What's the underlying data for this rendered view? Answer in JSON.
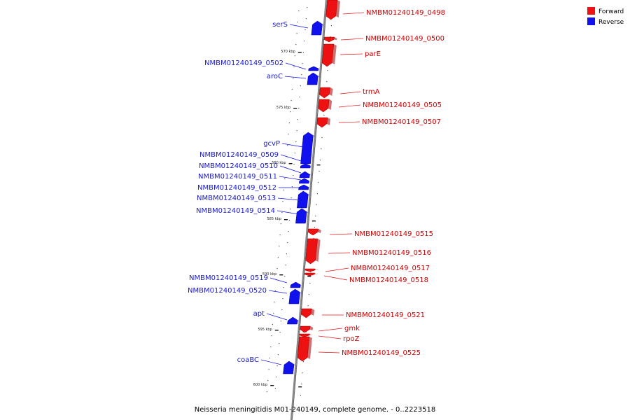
{
  "legend": {
    "forward": {
      "label": "Forward",
      "color": "#ee1111"
    },
    "reverse": {
      "label": "Reverse",
      "color": "#1111ee"
    }
  },
  "caption": "Neisseria meningitidis M01-240149, complete genome. - 0..2223518",
  "ticks": [
    "570 kbp",
    "575 kbp",
    "580 kbp",
    "585 kbp",
    "590 kbp",
    "595 kbp",
    "600 kbp"
  ],
  "features": [
    {
      "name": "NMBM01240149_0498",
      "strand": "forward"
    },
    {
      "name": "serS",
      "strand": "reverse"
    },
    {
      "name": "NMBM01240149_0500",
      "strand": "forward"
    },
    {
      "name": "parE",
      "strand": "forward"
    },
    {
      "name": "NMBM01240149_0502",
      "strand": "reverse"
    },
    {
      "name": "aroC",
      "strand": "reverse"
    },
    {
      "name": "trmA",
      "strand": "forward"
    },
    {
      "name": "NMBM01240149_0505",
      "strand": "forward"
    },
    {
      "name": "NMBM01240149_0507",
      "strand": "forward"
    },
    {
      "name": "gcvP",
      "strand": "reverse"
    },
    {
      "name": "NMBM01240149_0509",
      "strand": "reverse"
    },
    {
      "name": "NMBM01240149_0510",
      "strand": "reverse"
    },
    {
      "name": "NMBM01240149_0511",
      "strand": "reverse"
    },
    {
      "name": "NMBM01240149_0512",
      "strand": "reverse"
    },
    {
      "name": "NMBM01240149_0513",
      "strand": "reverse"
    },
    {
      "name": "NMBM01240149_0514",
      "strand": "reverse"
    },
    {
      "name": "NMBM01240149_0515",
      "strand": "forward"
    },
    {
      "name": "NMBM01240149_0516",
      "strand": "forward"
    },
    {
      "name": "NMBM01240149_0517",
      "strand": "forward"
    },
    {
      "name": "NMBM01240149_0518",
      "strand": "forward"
    },
    {
      "name": "NMBM01240149_0519",
      "strand": "reverse"
    },
    {
      "name": "NMBM01240149_0520",
      "strand": "reverse"
    },
    {
      "name": "apt",
      "strand": "reverse"
    },
    {
      "name": "NMBM01240149_0521",
      "strand": "forward"
    },
    {
      "name": "gmk",
      "strand": "forward"
    },
    {
      "name": "rpoZ",
      "strand": "forward"
    },
    {
      "name": "NMBM01240149_0525",
      "strand": "forward"
    },
    {
      "name": "coaBC",
      "strand": "reverse"
    }
  ]
}
